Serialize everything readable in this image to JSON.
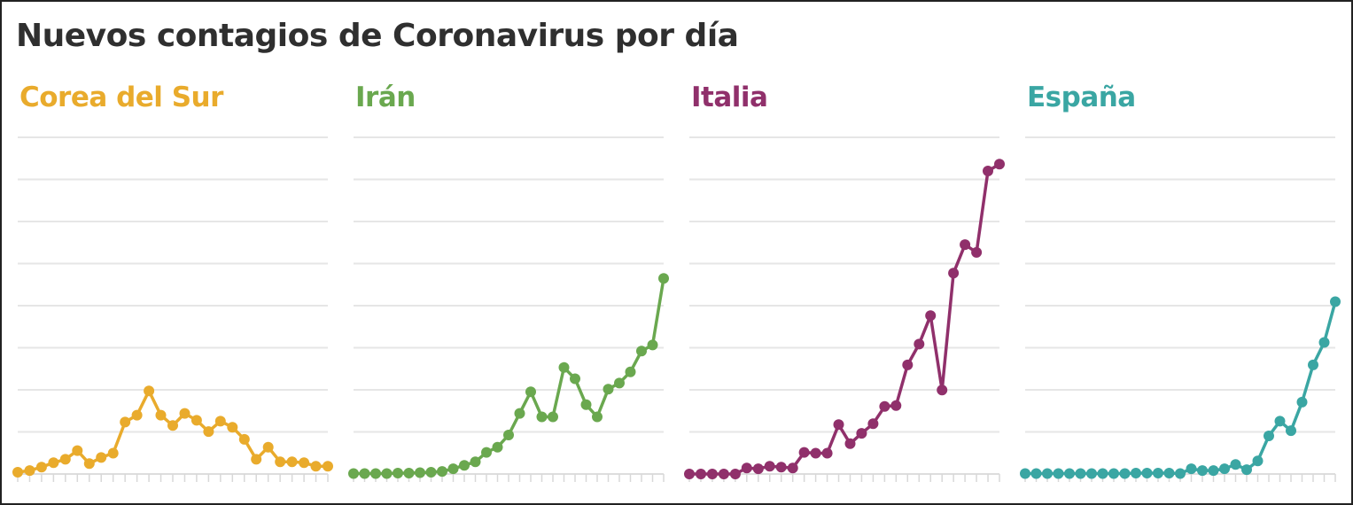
{
  "title": "Nuevos contagios de Coronavirus por día",
  "chart_data": [
    {
      "type": "line",
      "name": "Corea del Sur",
      "color": "#e9ab2c",
      "ylim": [
        0,
        3500
      ],
      "grid": true,
      "values": [
        20,
        40,
        80,
        130,
        170,
        270,
        120,
        190,
        240,
        600,
        680,
        960,
        680,
        560,
        700,
        620,
        490,
        610,
        540,
        400,
        170,
        310,
        140,
        140,
        130,
        90,
        90
      ]
    },
    {
      "type": "line",
      "name": "Irán",
      "color": "#6aa84f",
      "ylim": [
        0,
        3500
      ],
      "grid": true,
      "values": [
        5,
        5,
        5,
        5,
        10,
        10,
        15,
        20,
        30,
        60,
        100,
        140,
        250,
        310,
        450,
        700,
        950,
        660,
        660,
        1230,
        1100,
        800,
        660,
        980,
        1050,
        1180,
        1420,
        1490,
        2260
      ]
    },
    {
      "type": "line",
      "name": "Italia",
      "color": "#90306b",
      "ylim": [
        0,
        3500
      ],
      "grid": true,
      "values": [
        0,
        0,
        0,
        0,
        0,
        70,
        60,
        90,
        80,
        70,
        250,
        240,
        240,
        570,
        350,
        470,
        580,
        780,
        790,
        1260,
        1500,
        1830,
        970,
        2320,
        2650,
        2560,
        3500,
        3580
      ]
    },
    {
      "type": "line",
      "name": "España",
      "color": "#3aa6a3",
      "ylim": [
        0,
        3500
      ],
      "grid": true,
      "values": [
        5,
        5,
        5,
        5,
        5,
        5,
        5,
        5,
        5,
        5,
        10,
        10,
        10,
        10,
        5,
        60,
        40,
        40,
        60,
        110,
        50,
        150,
        440,
        610,
        500,
        830,
        1260,
        1520,
        1990
      ]
    }
  ]
}
